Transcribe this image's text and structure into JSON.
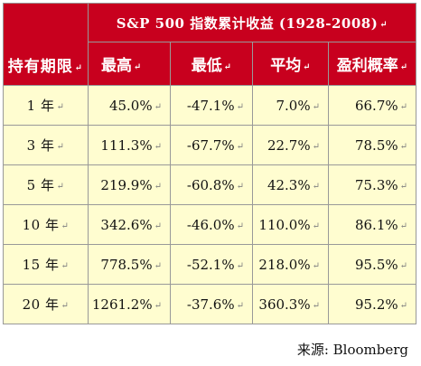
{
  "table": {
    "title": "S&P 500 指数累计收益 (1928-2008)",
    "holding_label": "持有期限",
    "columns": [
      "最高",
      "最低",
      "平均",
      "盈利概率"
    ],
    "mark": "↵",
    "rows": [
      {
        "period": "1 年",
        "max": "45.0%",
        "min": "-47.1%",
        "avg": "7.0%",
        "prob": "66.7%"
      },
      {
        "period": "3 年",
        "max": "111.3%",
        "min": "-67.7%",
        "avg": "22.7%",
        "prob": "78.5%"
      },
      {
        "period": "5 年",
        "max": "219.9%",
        "min": "-60.8%",
        "avg": "42.3%",
        "prob": "75.3%"
      },
      {
        "period": "10 年",
        "max": "342.6%",
        "min": "-46.0%",
        "avg": "110.0%",
        "prob": "86.1%"
      },
      {
        "period": "15 年",
        "max": "778.5%",
        "min": "-52.1%",
        "avg": "218.0%",
        "prob": "95.5%"
      },
      {
        "period": "20 年",
        "max": "1261.2%",
        "min": "-37.6%",
        "avg": "360.3%",
        "prob": "95.2%"
      }
    ]
  },
  "source": "来源: Bloomberg",
  "colors": {
    "header_bg": "#c8001e",
    "body_bg": "#fffdd0",
    "border": "#999999"
  }
}
